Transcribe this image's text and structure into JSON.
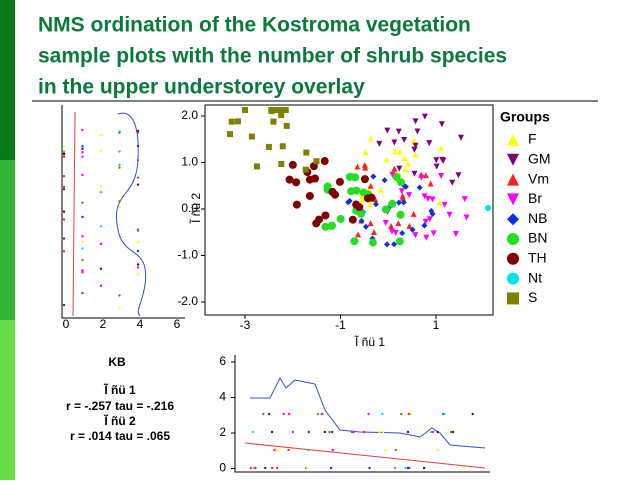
{
  "header": {
    "title_lines": [
      "NMS ordination of the Kostroma vegetation",
      "sample plots with the number of shrub species",
      "in the upper understorey overlay"
    ]
  },
  "left_plot": {
    "xticks": [
      "0",
      "2",
      "4",
      "6"
    ]
  },
  "main_plot": {
    "yticks": [
      "2.0",
      "1.0",
      "0.0",
      "-1.0",
      "-2.0"
    ],
    "xticks": [
      "-3",
      "-1",
      "1"
    ],
    "xlabel": "Ĩ ñü 1",
    "ylabel": "Ĩ ñü 2"
  },
  "legend": {
    "title": "Groups",
    "items": [
      {
        "label": "F",
        "color": "#ffff00",
        "shape": "up"
      },
      {
        "label": "GM",
        "color": "#800080",
        "shape": "down"
      },
      {
        "label": "Vm",
        "color": "#ff2020",
        "shape": "up"
      },
      {
        "label": "Br",
        "color": "#ff00ff",
        "shape": "down"
      },
      {
        "label": "NB",
        "color": "#1030e0",
        "shape": "diamond"
      },
      {
        "label": "BN",
        "color": "#20e020",
        "shape": "circle"
      },
      {
        "label": "TH",
        "color": "#800000",
        "shape": "circle"
      },
      {
        "label": "Nt",
        "color": "#00e0f0",
        "shape": "circle"
      },
      {
        "label": "S",
        "color": "#808000",
        "shape": "square"
      }
    ]
  },
  "stats": {
    "title": "KB",
    "lines": [
      "Ĩ ñü 1",
      "r = -.257 tau = -.216",
      "Ĩ ñü 2",
      "r =  .014 tau =  .065"
    ]
  },
  "bottom_plot": {
    "yticks": [
      "6",
      "4",
      "2",
      "0"
    ]
  }
}
